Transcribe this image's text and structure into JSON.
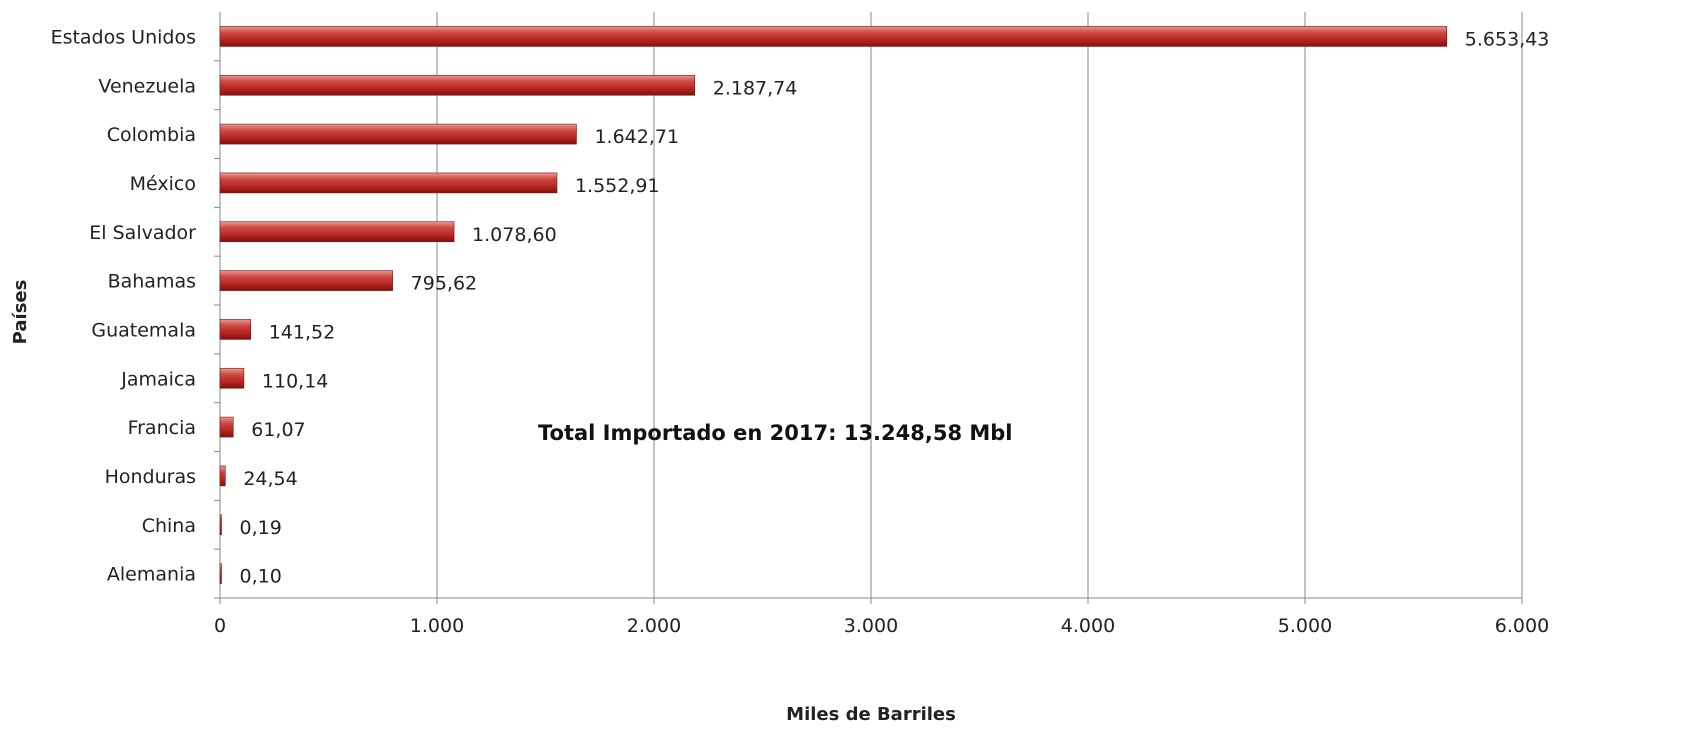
{
  "chart_data": {
    "type": "bar",
    "orientation": "horizontal",
    "categories": [
      "Estados Unidos",
      "Venezuela",
      "Colombia",
      "México",
      "El Salvador",
      "Bahamas",
      "Guatemala",
      "Jamaica",
      "Francia",
      "Honduras",
      "China",
      "Alemania"
    ],
    "values": [
      5653.43,
      2187.74,
      1642.71,
      1552.91,
      1078.6,
      795.62,
      141.52,
      110.14,
      61.07,
      24.54,
      0.19,
      0.1
    ],
    "data_labels": [
      "5.653,43",
      "2.187,74",
      "1.642,71",
      "1.552,91",
      "1.078,60",
      "795,62",
      "141,52",
      "110,14",
      "61,07",
      "24,54",
      "0,19",
      "0,10"
    ],
    "xlabel": "Miles de Barriles",
    "ylabel": "Países",
    "xlim": [
      0,
      6000
    ],
    "x_ticks": [
      0,
      1000,
      2000,
      3000,
      4000,
      5000,
      6000
    ],
    "x_tick_labels": [
      "0",
      "1.000",
      "2.000",
      "3.000",
      "4.000",
      "5.000",
      "6.000"
    ],
    "grid": "vertical",
    "annotation": "Total Importado en 2017:  13.248,58  Mbl",
    "bar_color": "#c0392b"
  }
}
